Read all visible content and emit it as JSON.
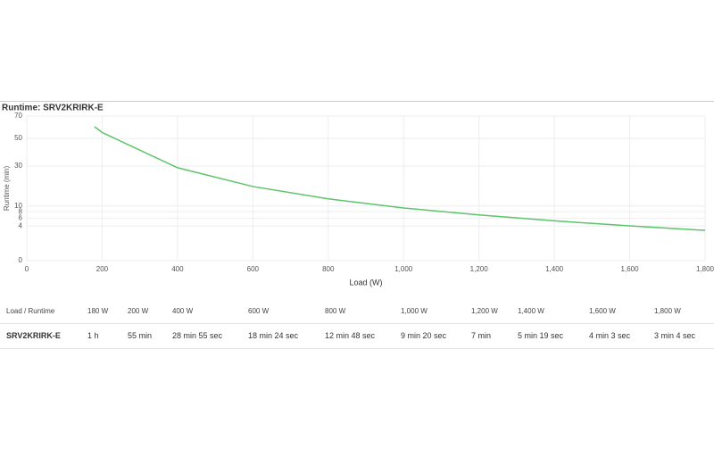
{
  "chart_data": {
    "type": "line",
    "title": "Runtime: SRV2KRIRK-E",
    "x_label": "Load (W)",
    "y_label": "Runtime (min)",
    "x": [
      180,
      200,
      400,
      600,
      800,
      1000,
      1200,
      1400,
      1600,
      1800
    ],
    "series": [
      {
        "name": "SRV2KRIRK-E",
        "color": "#5cc46a",
        "values": [
          60,
          55,
          28.9,
          18.4,
          12.8,
          9.3,
          7,
          5.3,
          4.05,
          3.07
        ]
      }
    ],
    "xlim": [
      0,
      1800
    ],
    "xticks": [
      0,
      200,
      400,
      600,
      800,
      {
        "value": 1000,
        "label": "1,000"
      },
      {
        "value": 1200,
        "label": "1,200"
      },
      {
        "value": 1400,
        "label": "1,400"
      },
      {
        "value": 1600,
        "label": "1,600"
      },
      {
        "value": 1800,
        "label": "1,800"
      }
    ],
    "ylim": [
      0,
      70
    ],
    "yticks": [
      0,
      4,
      6,
      8,
      10,
      30,
      50,
      70
    ],
    "yscale": "sqrt",
    "grid": true,
    "legend": false
  },
  "table": {
    "header": [
      "Load / Runtime",
      "180 W",
      "200 W",
      "400 W",
      "600 W",
      "800 W",
      "1,000 W",
      "1,200 W",
      "1,400 W",
      "1,600 W",
      "1,800 W"
    ],
    "rows": [
      [
        "SRV2KRIRK-E",
        "1 h",
        "55 min",
        "28 min 55 sec",
        "18 min 24 sec",
        "12 min 48 sec",
        "9 min 20 sec",
        "7 min",
        "5 min 19 sec",
        "4 min 3 sec",
        "3 min 4 sec"
      ]
    ]
  }
}
